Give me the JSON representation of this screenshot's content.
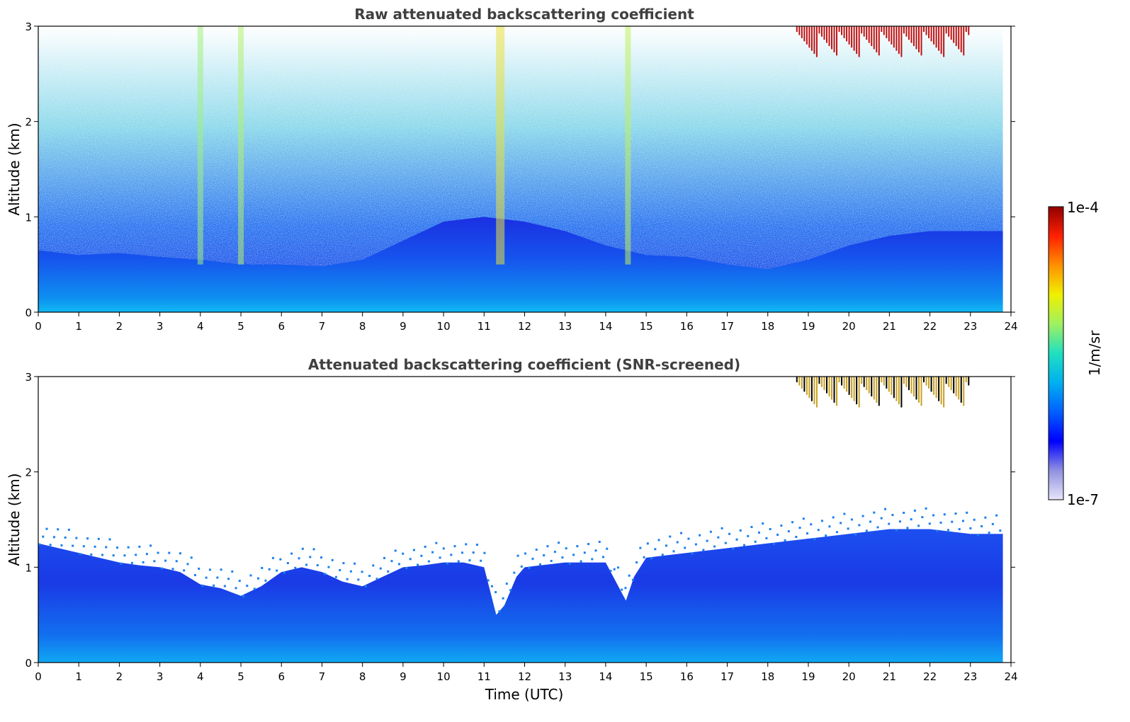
{
  "chart_data": [
    {
      "type": "heatmap",
      "title": "Raw attenuated backscattering coefficient",
      "xlabel": "",
      "ylabel": "Altitude (km)",
      "xlim": [
        0,
        24
      ],
      "ylim": [
        0,
        3
      ],
      "x_ticks": [
        "0",
        "1",
        "2",
        "3",
        "4",
        "5",
        "6",
        "7",
        "8",
        "9",
        "10",
        "11",
        "12",
        "13",
        "14",
        "15",
        "16",
        "17",
        "18",
        "19",
        "20",
        "21",
        "22",
        "23",
        "24"
      ],
      "y_ticks": [
        "0",
        "1",
        "2",
        "3"
      ],
      "data_extent_hours": [
        0,
        23.8
      ],
      "screened": false,
      "boundary_layer_top_km": [
        [
          0,
          0.65
        ],
        [
          1,
          0.6
        ],
        [
          2,
          0.62
        ],
        [
          3,
          0.58
        ],
        [
          4,
          0.55
        ],
        [
          5,
          0.5
        ],
        [
          6,
          0.5
        ],
        [
          7,
          0.48
        ],
        [
          8,
          0.55
        ],
        [
          9,
          0.75
        ],
        [
          10,
          0.95
        ],
        [
          11,
          1.0
        ],
        [
          12,
          0.95
        ],
        [
          13,
          0.85
        ],
        [
          14,
          0.7
        ],
        [
          15,
          0.6
        ],
        [
          16,
          0.58
        ],
        [
          17,
          0.5
        ],
        [
          18,
          0.45
        ],
        [
          19,
          0.55
        ],
        [
          20,
          0.7
        ],
        [
          21,
          0.8
        ],
        [
          22,
          0.85
        ],
        [
          23,
          0.85
        ],
        [
          23.8,
          0.85
        ]
      ],
      "high_cloud": {
        "start_hour": 18.7,
        "end_hour": 23.0,
        "base_km": 2.72,
        "top_km": 3.0
      }
    },
    {
      "type": "heatmap",
      "title": "Attenuated backscattering coefficient (SNR-screened)",
      "xlabel": "Time (UTC)",
      "ylabel": "Altitude (km)",
      "xlim": [
        0,
        24
      ],
      "ylim": [
        0,
        3
      ],
      "x_ticks": [
        "0",
        "1",
        "2",
        "3",
        "4",
        "5",
        "6",
        "7",
        "8",
        "9",
        "10",
        "11",
        "12",
        "13",
        "14",
        "15",
        "16",
        "17",
        "18",
        "19",
        "20",
        "21",
        "22",
        "23",
        "24"
      ],
      "y_ticks": [
        "0",
        "1",
        "2",
        "3"
      ],
      "data_extent_hours": [
        0,
        23.8
      ],
      "screened": true,
      "signal_top_km": [
        [
          0,
          1.25
        ],
        [
          0.5,
          1.2
        ],
        [
          1,
          1.15
        ],
        [
          1.5,
          1.1
        ],
        [
          2,
          1.05
        ],
        [
          2.5,
          1.02
        ],
        [
          3,
          1.0
        ],
        [
          3.5,
          0.95
        ],
        [
          4,
          0.82
        ],
        [
          4.5,
          0.78
        ],
        [
          5,
          0.7
        ],
        [
          5.5,
          0.8
        ],
        [
          6,
          0.95
        ],
        [
          6.5,
          1.0
        ],
        [
          7,
          0.95
        ],
        [
          7.5,
          0.85
        ],
        [
          8,
          0.8
        ],
        [
          8.5,
          0.9
        ],
        [
          9,
          1.0
        ],
        [
          9.5,
          1.02
        ],
        [
          10,
          1.05
        ],
        [
          10.5,
          1.05
        ],
        [
          11,
          1.0
        ],
        [
          11.3,
          0.5
        ],
        [
          11.5,
          0.6
        ],
        [
          11.8,
          0.9
        ],
        [
          12,
          1.0
        ],
        [
          13,
          1.05
        ],
        [
          14,
          1.05
        ],
        [
          14.5,
          0.65
        ],
        [
          14.7,
          0.9
        ],
        [
          15,
          1.1
        ],
        [
          16,
          1.15
        ],
        [
          17,
          1.2
        ],
        [
          18,
          1.25
        ],
        [
          19,
          1.3
        ],
        [
          20,
          1.35
        ],
        [
          21,
          1.4
        ],
        [
          22,
          1.4
        ],
        [
          23,
          1.35
        ],
        [
          23.8,
          1.35
        ]
      ],
      "high_cloud": {
        "start_hour": 18.7,
        "end_hour": 23.0,
        "base_km": 2.72,
        "top_km": 3.0
      }
    }
  ],
  "colorbar": {
    "label": "1/m/sr",
    "min_label": "1e-7",
    "max_label": "1e-4",
    "colormap": [
      "#e6e6fa",
      "#9090e0",
      "#0000ff",
      "#0060ff",
      "#00b0f0",
      "#20e0c0",
      "#a0f060",
      "#f0f000",
      "#ff9000",
      "#ff2000",
      "#900000"
    ]
  },
  "colors": {
    "deep_blue": "#1a30e0",
    "mid_blue": "#1060f0",
    "light_blue": "#10a8f0",
    "noise_teal": "#30c8d8",
    "cloud_red": "#c01010"
  }
}
